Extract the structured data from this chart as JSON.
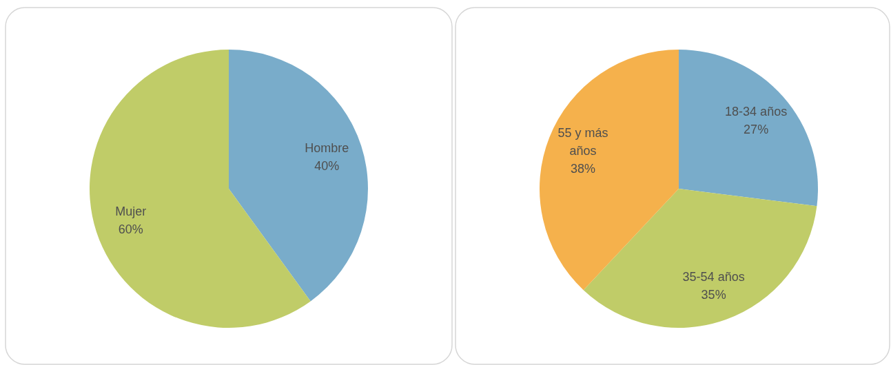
{
  "chart_data": [
    {
      "type": "pie",
      "categories": [
        "Hombre",
        "Mujer"
      ],
      "values": [
        40,
        60
      ],
      "value_labels": [
        "40%",
        "60%"
      ],
      "colors": [
        "#79acca",
        "#c0cc68"
      ]
    },
    {
      "type": "pie",
      "categories": [
        "18-34 años",
        "35-54 años",
        "55 y más años"
      ],
      "values": [
        27,
        35,
        38
      ],
      "value_labels": [
        "27%",
        "35%",
        "38%"
      ],
      "colors": [
        "#79acca",
        "#c0cc68",
        "#f5b14c"
      ]
    }
  ]
}
